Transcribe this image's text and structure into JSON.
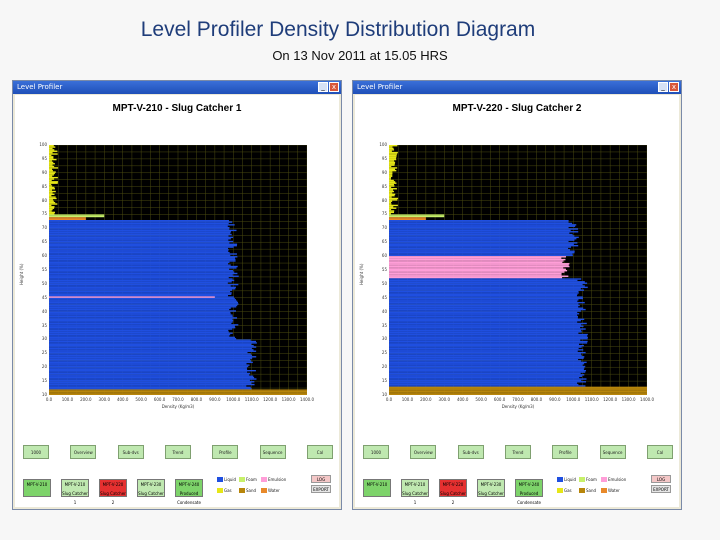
{
  "slide": {
    "title": "Level Profiler Density Distribution Diagram",
    "subtitle": "On 13 Nov 2011 at 15.05 HRS"
  },
  "windows": [
    {
      "window_title": "Level Profiler",
      "chart_title": "MPT-V-210 - Slug Catcher 1",
      "y_axis_label": "Height (%)",
      "x_axis_label": "Density (Kg/m3)",
      "y_ticks": [
        "100",
        "95",
        "90",
        "85",
        "80",
        "75",
        "70",
        "65",
        "60",
        "55",
        "50",
        "45",
        "40",
        "35",
        "30",
        "25",
        "20",
        "15",
        "10"
      ],
      "x_ticks": [
        "0.0",
        "100.0",
        "200.0",
        "300.0",
        "400.0",
        "500.0",
        "600.0",
        "700.0",
        "800.0",
        "900.0",
        "1000.0",
        "1100.0",
        "1200.0",
        "1300.0",
        "1400.0"
      ],
      "tab_buttons": [
        "1000",
        "Overview",
        "Sub-dvs",
        "Trend",
        "Profile",
        "Sequence",
        "Cal"
      ],
      "bottom_units": [
        {
          "label": "MPT-V-210",
          "color": "#7dd36a"
        },
        {
          "label": "MPT-V-210 Slug Catcher 1",
          "color": "#bfe8b0"
        },
        {
          "label": "MPT-V-220 Slug Catcher 2",
          "color": "#e53030"
        },
        {
          "label": "MPT-V-230 Slug Catcher",
          "color": "#bfe8b0"
        },
        {
          "label": "MPT-V-240 Produced Condensate",
          "color": "#7dd36a"
        }
      ],
      "legend": [
        {
          "label": "Liquid",
          "color": "#1f4fe0"
        },
        {
          "label": "Gas",
          "color": "#e6e617"
        },
        {
          "label": "Foam",
          "color": "#c7f06a"
        },
        {
          "label": "Sand",
          "color": "#b8860b"
        },
        {
          "label": "Emulsion",
          "color": "#ff9ed8"
        },
        {
          "label": "Water",
          "color": "#e8892a"
        }
      ],
      "side_buttons": [
        "LOG",
        "EXPORT"
      ]
    },
    {
      "window_title": "Level Profiler",
      "chart_title": "MPT-V-220 - Slug Catcher 2",
      "y_axis_label": "Height (%)",
      "x_axis_label": "Density (Kg/m3)",
      "y_ticks": [
        "100",
        "95",
        "90",
        "85",
        "80",
        "75",
        "70",
        "65",
        "60",
        "55",
        "50",
        "45",
        "40",
        "35",
        "30",
        "25",
        "20",
        "15",
        "10"
      ],
      "x_ticks": [
        "0.0",
        "100.0",
        "200.0",
        "300.0",
        "400.0",
        "500.0",
        "600.0",
        "700.0",
        "800.0",
        "900.0",
        "1000.0",
        "1100.0",
        "1200.0",
        "1300.0",
        "1400.0"
      ],
      "tab_buttons": [
        "1000",
        "Overview",
        "Sub-dvs",
        "Trend",
        "Profile",
        "Sequence",
        "Cal"
      ],
      "bottom_units": [
        {
          "label": "MPT-V-210",
          "color": "#7dd36a"
        },
        {
          "label": "MPT-V-210 Slug Catcher 1",
          "color": "#bfe8b0"
        },
        {
          "label": "MPT-V-220 Slug Catcher 2",
          "color": "#e53030"
        },
        {
          "label": "MPT-V-230 Slug Catcher",
          "color": "#bfe8b0"
        },
        {
          "label": "MPT-V-240 Produced Condensate",
          "color": "#7dd36a"
        }
      ],
      "legend": [
        {
          "label": "Liquid",
          "color": "#1f4fe0"
        },
        {
          "label": "Gas",
          "color": "#e6e617"
        },
        {
          "label": "Foam",
          "color": "#c7f06a"
        },
        {
          "label": "Sand",
          "color": "#b8860b"
        },
        {
          "label": "Emulsion",
          "color": "#ff9ed8"
        },
        {
          "label": "Water",
          "color": "#e8892a"
        }
      ],
      "side_buttons": [
        "LOG",
        "EXPORT"
      ]
    }
  ],
  "chart_data": [
    {
      "type": "bar",
      "orientation": "horizontal",
      "title": "MPT-V-210 - Slug Catcher 1",
      "xlabel": "Density (Kg/m3)",
      "ylabel": "Height (%)",
      "xlim": [
        0,
        1400
      ],
      "ylim": [
        10,
        100
      ],
      "layers": [
        {
          "name": "Gas",
          "y_from": 75,
          "y_to": 100,
          "density": 10,
          "color": "#e6e617"
        },
        {
          "name": "Foam",
          "y_from": 74,
          "y_to": 75,
          "density": 300,
          "color": "#c7f06a"
        },
        {
          "name": "Water",
          "y_from": 73,
          "y_to": 74,
          "density": 200,
          "color": "#e8892a"
        },
        {
          "name": "Liquid",
          "y_from": 30,
          "y_to": 73,
          "density": 1000,
          "color": "#1f4fe0"
        },
        {
          "name": "Liquid",
          "y_from": 12,
          "y_to": 30,
          "density": 1100,
          "color": "#1f4fe0"
        },
        {
          "name": "Emulsion",
          "y_from": 45,
          "y_to": 45.5,
          "density": 900,
          "color": "#ff9ed8"
        },
        {
          "name": "Sand",
          "y_from": 10,
          "y_to": 12,
          "density": 1400,
          "color": "#b8860b"
        }
      ]
    },
    {
      "type": "bar",
      "orientation": "horizontal",
      "title": "MPT-V-220 - Slug Catcher 2",
      "xlabel": "Density (Kg/m3)",
      "ylabel": "Height (%)",
      "xlim": [
        0,
        1400
      ],
      "ylim": [
        10,
        100
      ],
      "layers": [
        {
          "name": "Gas",
          "y_from": 75,
          "y_to": 100,
          "density": 10,
          "color": "#e6e617"
        },
        {
          "name": "Foam",
          "y_from": 74,
          "y_to": 75,
          "density": 300,
          "color": "#c7f06a"
        },
        {
          "name": "Water",
          "y_from": 73,
          "y_to": 74,
          "density": 200,
          "color": "#e8892a"
        },
        {
          "name": "Liquid",
          "y_from": 60,
          "y_to": 73,
          "density": 1000,
          "color": "#1f4fe0"
        },
        {
          "name": "Emulsion",
          "y_from": 52,
          "y_to": 60,
          "density": 950,
          "color": "#ff9ed8"
        },
        {
          "name": "Liquid",
          "y_from": 13,
          "y_to": 52,
          "density": 1050,
          "color": "#1f4fe0"
        },
        {
          "name": "Sand",
          "y_from": 10,
          "y_to": 13,
          "density": 1400,
          "color": "#b8860b"
        }
      ]
    }
  ]
}
